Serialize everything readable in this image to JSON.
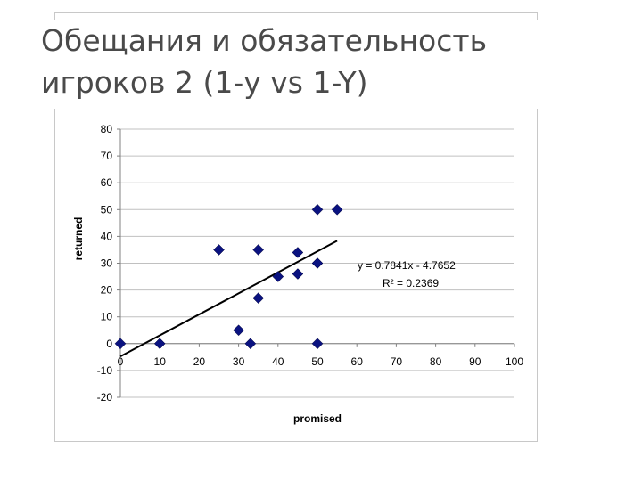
{
  "slide": {
    "title_line1": "Обещания и обязательность",
    "title_line2": "игроков 2 (1-y vs 1-Y)"
  },
  "chart_data": {
    "type": "scatter",
    "xlabel": "promised",
    "ylabel": "returned",
    "xlim": [
      0,
      100
    ],
    "ylim": [
      -20,
      80
    ],
    "xticks": [
      0,
      10,
      20,
      30,
      40,
      50,
      60,
      70,
      80,
      90,
      100
    ],
    "yticks": [
      -20,
      -10,
      0,
      10,
      20,
      30,
      40,
      50,
      60,
      70,
      80
    ],
    "grid": true,
    "marker_color": "#0a1280",
    "points": [
      {
        "x": 0,
        "y": 0
      },
      {
        "x": 10,
        "y": 0
      },
      {
        "x": 25,
        "y": 35
      },
      {
        "x": 30,
        "y": 5
      },
      {
        "x": 33,
        "y": 0
      },
      {
        "x": 35,
        "y": 35
      },
      {
        "x": 35,
        "y": 17
      },
      {
        "x": 40,
        "y": 25
      },
      {
        "x": 45,
        "y": 34
      },
      {
        "x": 45,
        "y": 26
      },
      {
        "x": 50,
        "y": 50
      },
      {
        "x": 50,
        "y": 30
      },
      {
        "x": 50,
        "y": 0
      },
      {
        "x": 55,
        "y": 50
      }
    ],
    "trendline": {
      "slope": 0.7841,
      "intercept": -4.7652,
      "x_range": [
        0,
        55
      ],
      "equation": "y = 0.7841x - 4.7652",
      "r2_label": "R² = 0.2369"
    }
  }
}
